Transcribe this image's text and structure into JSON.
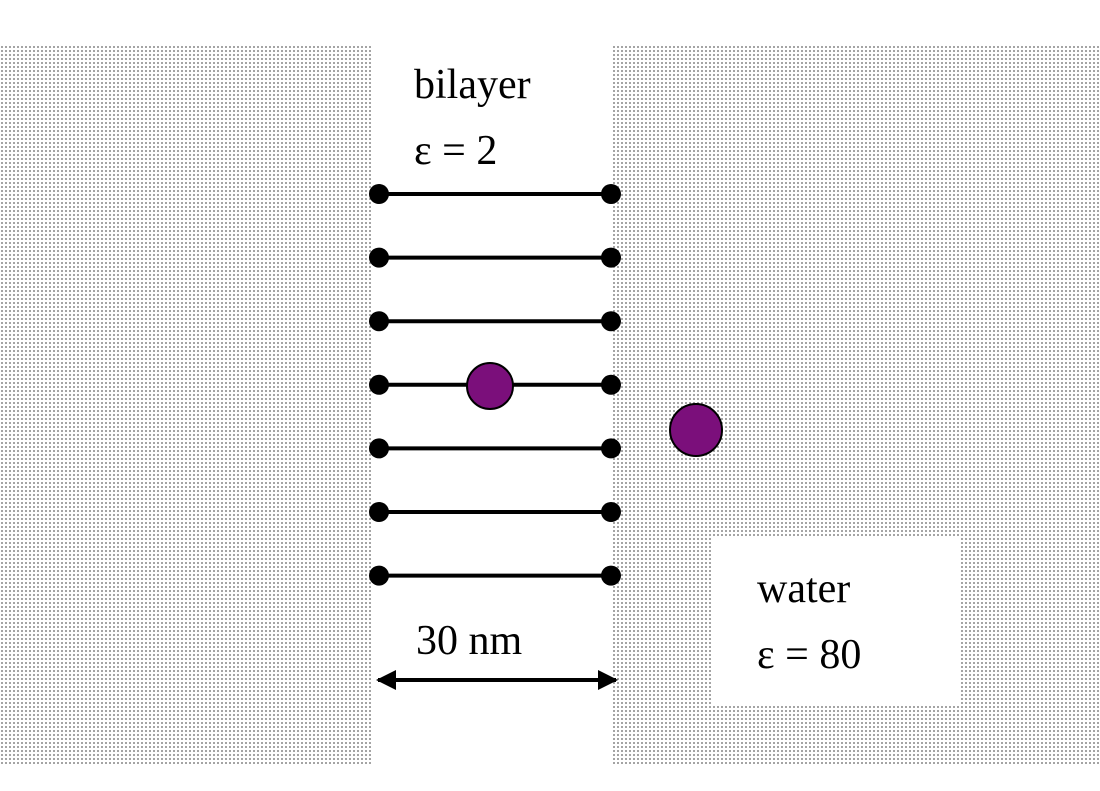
{
  "bilayer": {
    "title": "bilayer",
    "permittivity_label": "ε = 2"
  },
  "water": {
    "title": "water",
    "permittivity_label": "ε = 80"
  },
  "dimension": {
    "label": "30 nm"
  },
  "lipid_layers": {
    "count": 7
  },
  "ions": [
    {
      "location": "inside bilayer",
      "color": "#7b0f7b"
    },
    {
      "location": "in water",
      "color": "#7b0f7b"
    }
  ],
  "colors": {
    "line": "#000000",
    "ion_fill": "#7b0f7b",
    "dot_pattern": "#7a7a7a"
  }
}
